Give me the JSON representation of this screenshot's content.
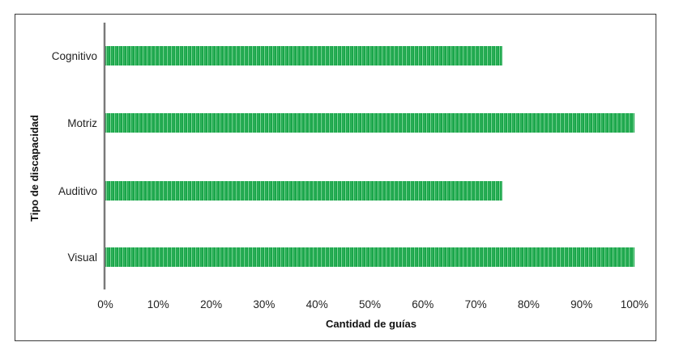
{
  "chart_data": {
    "type": "bar",
    "orientation": "horizontal",
    "categories": [
      "Cognitivo",
      "Motriz",
      "Auditivo",
      "Visual"
    ],
    "values": [
      75,
      100,
      75,
      100
    ],
    "xlabel": "Cantidad de guías",
    "ylabel": "Tipo de discapacidad",
    "xlim": [
      0,
      100
    ],
    "x_ticks": [
      "0%",
      "10%",
      "20%",
      "30%",
      "40%",
      "50%",
      "60%",
      "70%",
      "80%",
      "90%",
      "100%"
    ],
    "grid": false,
    "legend": "none",
    "bar_color": "#1aa64a",
    "bar_stripe_color": "#8fdca6",
    "axis_color": "#7a7a7a"
  }
}
